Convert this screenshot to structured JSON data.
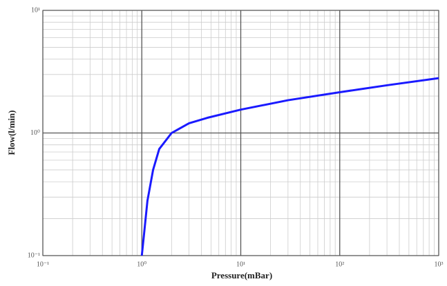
{
  "chart_data": {
    "type": "line",
    "x_label": "Pressure(mBar)",
    "y_label": "Flow(l/min)",
    "x_log": true,
    "y_log": true,
    "grid": true,
    "minor_grid": true,
    "xlim": [
      0.1,
      1000
    ],
    "ylim": [
      0.1,
      10
    ],
    "xticks": [
      {
        "value": 0.1,
        "label": "10⁻¹"
      },
      {
        "value": 1,
        "label": "10⁰"
      },
      {
        "value": 10,
        "label": "10¹"
      },
      {
        "value": 100,
        "label": "10²"
      },
      {
        "value": 1000,
        "label": "10³"
      }
    ],
    "yticks": [
      {
        "value": 0.1,
        "label": "10⁻¹"
      },
      {
        "value": 1,
        "label": "10⁰"
      },
      {
        "value": 10,
        "label": "10¹"
      }
    ],
    "x": [
      1,
      1.05,
      1.14,
      1.3,
      1.5,
      2,
      3,
      4.6,
      10,
      30,
      100,
      300,
      1000
    ],
    "series": [
      {
        "name": "flow",
        "color": "#1a1aff",
        "values": [
          0.1,
          0.146,
          0.28,
          0.5,
          0.74,
          1,
          1.2,
          1.33,
          1.55,
          1.85,
          2.15,
          2.45,
          2.8
        ]
      }
    ]
  }
}
